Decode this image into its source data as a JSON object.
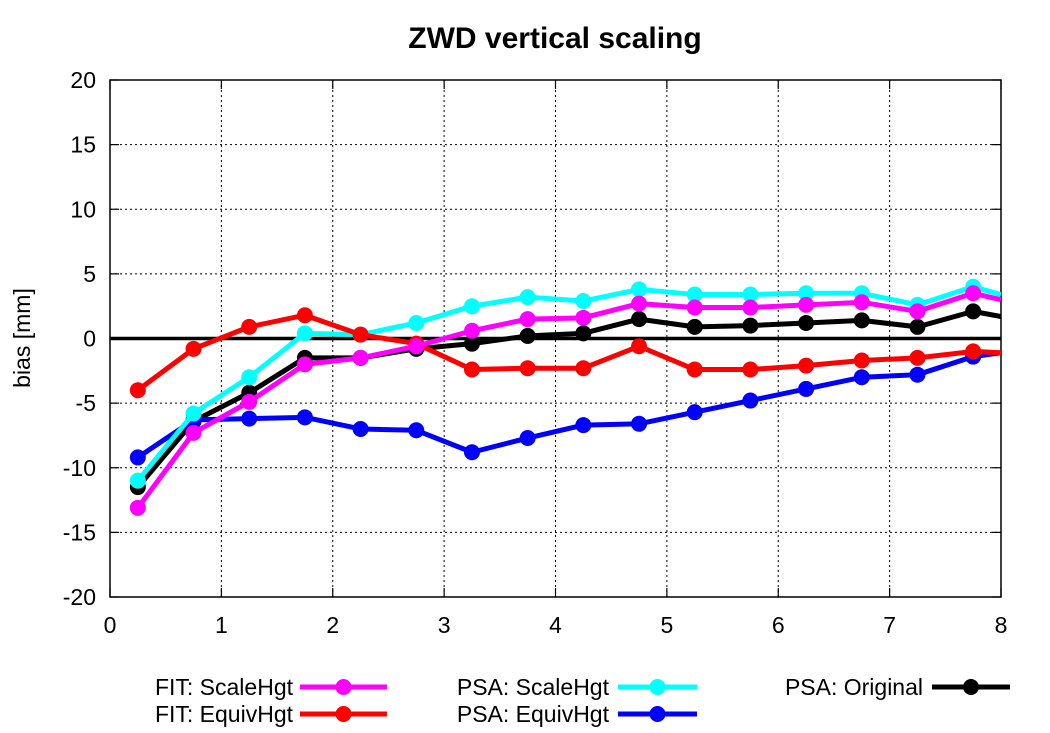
{
  "chart_data": {
    "type": "line",
    "title": "ZWD vertical scaling",
    "xlabel": "",
    "ylabel": "bias [mm]",
    "xlim": [
      0,
      8
    ],
    "ylim": [
      -20,
      20
    ],
    "x_ticks": [
      "0",
      "1",
      "2",
      "3",
      "4",
      "5",
      "6",
      "7",
      "8"
    ],
    "y_ticks": [
      "-20",
      "-15",
      "-10",
      "-5",
      "0",
      "5",
      "10",
      "15",
      "20"
    ],
    "grid": true,
    "zero_line": true,
    "legend_position": "bottom",
    "x": [
      0.25,
      0.75,
      1.25,
      1.75,
      2.25,
      2.75,
      3.25,
      3.75,
      4.25,
      4.75,
      5.25,
      5.75,
      6.25,
      6.75,
      7.25,
      7.75,
      8.0
    ],
    "series": [
      {
        "name": "FIT: ScaleHgt",
        "color": "#ff00ff",
        "values": [
          -13.1,
          -7.3,
          -4.9,
          -2.0,
          -1.5,
          -0.6,
          0.6,
          1.5,
          1.6,
          2.7,
          2.4,
          2.4,
          2.6,
          2.8,
          2.1,
          3.5,
          3.0
        ]
      },
      {
        "name": "FIT: EquivHgt",
        "color": "#ff0000",
        "values": [
          -4.0,
          -0.8,
          0.9,
          1.8,
          0.3,
          -0.4,
          -2.4,
          -2.3,
          -2.3,
          -0.6,
          -2.4,
          -2.4,
          -2.1,
          -1.7,
          -1.5,
          -1.0,
          -1.1
        ]
      },
      {
        "name": "PSA: ScaleHgt",
        "color": "#00ffff",
        "values": [
          -11.0,
          -5.8,
          -3.0,
          0.4,
          0.3,
          1.2,
          2.5,
          3.2,
          2.9,
          3.8,
          3.4,
          3.4,
          3.5,
          3.5,
          2.6,
          4.0,
          3.4
        ]
      },
      {
        "name": "PSA: EquivHgt",
        "color": "#0000ff",
        "values": [
          -9.2,
          -6.3,
          -6.2,
          -6.1,
          -7.0,
          -7.1,
          -8.8,
          -7.7,
          -6.7,
          -6.6,
          -5.7,
          -4.8,
          -3.9,
          -3.0,
          -2.8,
          -1.4,
          -1.1
        ]
      },
      {
        "name": "PSA: Original",
        "color": "#000000",
        "values": [
          -11.5,
          -6.4,
          -4.2,
          -1.5,
          -1.5,
          -0.8,
          -0.4,
          0.2,
          0.4,
          1.5,
          0.9,
          1.0,
          1.2,
          1.4,
          0.9,
          2.1,
          1.7
        ]
      }
    ]
  }
}
